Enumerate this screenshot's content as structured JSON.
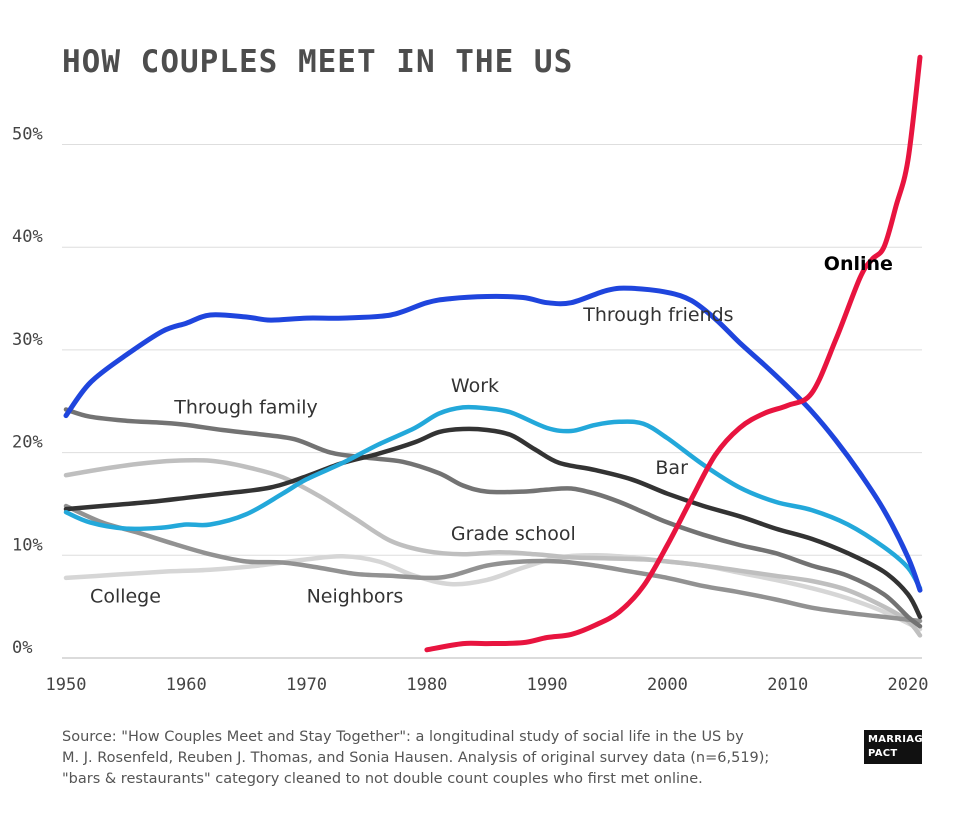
{
  "chart_data": {
    "type": "line",
    "title": "HOW COUPLES MEET IN THE US",
    "xlabel": "",
    "ylabel": "",
    "xlim": [
      1950,
      2021
    ],
    "ylim": [
      0,
      55
    ],
    "x_ticks": [
      {
        "value": 1950,
        "label": "1950"
      },
      {
        "value": 1960,
        "label": "1960"
      },
      {
        "value": 1970,
        "label": "1970"
      },
      {
        "value": 1980,
        "label": "1980"
      },
      {
        "value": 1990,
        "label": "1990"
      },
      {
        "value": 2000,
        "label": "2000"
      },
      {
        "value": 2010,
        "label": "2010"
      },
      {
        "value": 2020,
        "label": "2020"
      }
    ],
    "y_ticks": [
      {
        "value": 0,
        "label": "0%"
      },
      {
        "value": 10,
        "label": "10%"
      },
      {
        "value": 20,
        "label": "20%"
      },
      {
        "value": 30,
        "label": "30%"
      },
      {
        "value": 40,
        "label": "40%"
      },
      {
        "value": 50,
        "label": "50%"
      }
    ],
    "grid": true,
    "series": [
      {
        "name": "Through friends",
        "color": "#1f45dd",
        "key": "through-friends",
        "label_anchor": [
          1993,
          32.8
        ],
        "bold_label": false,
        "points": [
          [
            1950,
            23.6
          ],
          [
            1952,
            26.8
          ],
          [
            1955,
            29.5
          ],
          [
            1958,
            31.8
          ],
          [
            1960,
            32.6
          ],
          [
            1962,
            33.4
          ],
          [
            1965,
            33.2
          ],
          [
            1967,
            32.9
          ],
          [
            1970,
            33.1
          ],
          [
            1973,
            33.1
          ],
          [
            1977,
            33.4
          ],
          [
            1980,
            34.6
          ],
          [
            1982,
            35.0
          ],
          [
            1985,
            35.2
          ],
          [
            1988,
            35.1
          ],
          [
            1990,
            34.6
          ],
          [
            1992,
            34.6
          ],
          [
            1995,
            35.8
          ],
          [
            1997,
            36.0
          ],
          [
            2000,
            35.6
          ],
          [
            2002,
            34.8
          ],
          [
            2004,
            33.0
          ],
          [
            2006,
            30.7
          ],
          [
            2008,
            28.6
          ],
          [
            2010,
            26.4
          ],
          [
            2012,
            24.0
          ],
          [
            2014,
            21.2
          ],
          [
            2016,
            18.0
          ],
          [
            2018,
            14.4
          ],
          [
            2020,
            9.8
          ],
          [
            2021,
            6.6
          ]
        ]
      },
      {
        "name": "Online",
        "color": "#e8143f",
        "key": "online",
        "label_anchor": [
          2013,
          37.8
        ],
        "bold_label": true,
        "points": [
          [
            1980,
            0.8
          ],
          [
            1983,
            1.4
          ],
          [
            1985,
            1.4
          ],
          [
            1988,
            1.5
          ],
          [
            1990,
            2.0
          ],
          [
            1992,
            2.3
          ],
          [
            1994,
            3.2
          ],
          [
            1996,
            4.5
          ],
          [
            1998,
            7.0
          ],
          [
            2000,
            11.0
          ],
          [
            2002,
            15.5
          ],
          [
            2004,
            19.8
          ],
          [
            2006,
            22.4
          ],
          [
            2008,
            23.8
          ],
          [
            2010,
            24.6
          ],
          [
            2012,
            25.8
          ],
          [
            2014,
            31.0
          ],
          [
            2016,
            37.0
          ],
          [
            2017,
            38.8
          ],
          [
            2018,
            40.0
          ],
          [
            2019,
            44.0
          ],
          [
            2020,
            48.5
          ],
          [
            2021,
            58.5
          ]
        ]
      },
      {
        "name": "Work",
        "color": "#23a8da",
        "key": "work",
        "label_anchor": [
          1982,
          25.9
        ],
        "bold_label": false,
        "points": [
          [
            1950,
            14.2
          ],
          [
            1952,
            13.2
          ],
          [
            1955,
            12.6
          ],
          [
            1958,
            12.7
          ],
          [
            1960,
            13.0
          ],
          [
            1962,
            13.0
          ],
          [
            1965,
            14.0
          ],
          [
            1968,
            16.0
          ],
          [
            1970,
            17.4
          ],
          [
            1973,
            19.0
          ],
          [
            1976,
            20.8
          ],
          [
            1979,
            22.4
          ],
          [
            1981,
            23.8
          ],
          [
            1983,
            24.4
          ],
          [
            1985,
            24.3
          ],
          [
            1987,
            23.9
          ],
          [
            1990,
            22.4
          ],
          [
            1992,
            22.1
          ],
          [
            1994,
            22.7
          ],
          [
            1996,
            23.0
          ],
          [
            1998,
            22.8
          ],
          [
            2000,
            21.4
          ],
          [
            2003,
            18.8
          ],
          [
            2006,
            16.6
          ],
          [
            2009,
            15.2
          ],
          [
            2012,
            14.4
          ],
          [
            2015,
            13.0
          ],
          [
            2018,
            10.8
          ],
          [
            2020,
            8.8
          ],
          [
            2021,
            6.8
          ]
        ]
      },
      {
        "name": "Through family",
        "color": "#737373",
        "key": "through-family",
        "label_anchor": [
          1959,
          23.8
        ],
        "bold_label": false,
        "points": [
          [
            1950,
            24.2
          ],
          [
            1952,
            23.5
          ],
          [
            1955,
            23.1
          ],
          [
            1958,
            22.9
          ],
          [
            1960,
            22.7
          ],
          [
            1963,
            22.2
          ],
          [
            1966,
            21.8
          ],
          [
            1969,
            21.3
          ],
          [
            1972,
            20.0
          ],
          [
            1975,
            19.5
          ],
          [
            1978,
            19.1
          ],
          [
            1981,
            18.0
          ],
          [
            1983,
            16.8
          ],
          [
            1985,
            16.2
          ],
          [
            1988,
            16.2
          ],
          [
            1990,
            16.4
          ],
          [
            1992,
            16.5
          ],
          [
            1994,
            16.0
          ],
          [
            1996,
            15.2
          ],
          [
            1998,
            14.2
          ],
          [
            2000,
            13.2
          ],
          [
            2003,
            12.0
          ],
          [
            2006,
            11.0
          ],
          [
            2009,
            10.2
          ],
          [
            2012,
            9.0
          ],
          [
            2015,
            8.0
          ],
          [
            2018,
            6.2
          ],
          [
            2020,
            4.0
          ],
          [
            2021,
            3.1
          ]
        ]
      },
      {
        "name": "Bar",
        "color": "#333333",
        "key": "bar",
        "label_anchor": [
          1999,
          17.9
        ],
        "bold_label": false,
        "points": [
          [
            1950,
            14.5
          ],
          [
            1953,
            14.8
          ],
          [
            1957,
            15.2
          ],
          [
            1960,
            15.6
          ],
          [
            1963,
            16.0
          ],
          [
            1967,
            16.6
          ],
          [
            1970,
            17.7
          ],
          [
            1973,
            19.0
          ],
          [
            1976,
            19.9
          ],
          [
            1979,
            21.0
          ],
          [
            1981,
            22.0
          ],
          [
            1983,
            22.3
          ],
          [
            1985,
            22.2
          ],
          [
            1987,
            21.7
          ],
          [
            1989,
            20.3
          ],
          [
            1991,
            19.0
          ],
          [
            1994,
            18.3
          ],
          [
            1997,
            17.4
          ],
          [
            2000,
            16.0
          ],
          [
            2003,
            14.8
          ],
          [
            2006,
            13.8
          ],
          [
            2009,
            12.6
          ],
          [
            2012,
            11.6
          ],
          [
            2015,
            10.2
          ],
          [
            2018,
            8.4
          ],
          [
            2020,
            6.2
          ],
          [
            2021,
            4.0
          ]
        ]
      },
      {
        "name": "Grade school",
        "color": "#bfbfbf",
        "key": "grade-school",
        "label_anchor": [
          1982,
          11.5
        ],
        "bold_label": false,
        "points": [
          [
            1950,
            17.8
          ],
          [
            1953,
            18.4
          ],
          [
            1956,
            18.9
          ],
          [
            1959,
            19.2
          ],
          [
            1962,
            19.2
          ],
          [
            1965,
            18.6
          ],
          [
            1968,
            17.6
          ],
          [
            1971,
            15.8
          ],
          [
            1974,
            13.6
          ],
          [
            1977,
            11.4
          ],
          [
            1980,
            10.4
          ],
          [
            1983,
            10.1
          ],
          [
            1986,
            10.3
          ],
          [
            1989,
            10.1
          ],
          [
            1992,
            9.8
          ],
          [
            1995,
            9.7
          ],
          [
            1998,
            9.6
          ],
          [
            2000,
            9.4
          ],
          [
            2003,
            9.0
          ],
          [
            2006,
            8.5
          ],
          [
            2009,
            8.0
          ],
          [
            2012,
            7.5
          ],
          [
            2015,
            6.6
          ],
          [
            2018,
            5.0
          ],
          [
            2020,
            3.6
          ],
          [
            2021,
            2.2
          ]
        ]
      },
      {
        "name": "Neighbors",
        "color": "#929292",
        "key": "neighbors",
        "label_anchor": [
          1970,
          5.4
        ],
        "bold_label": false,
        "points": [
          [
            1950,
            14.8
          ],
          [
            1953,
            13.2
          ],
          [
            1956,
            12.2
          ],
          [
            1959,
            11.1
          ],
          [
            1962,
            10.1
          ],
          [
            1965,
            9.4
          ],
          [
            1968,
            9.3
          ],
          [
            1971,
            8.8
          ],
          [
            1974,
            8.2
          ],
          [
            1977,
            8.0
          ],
          [
            1980,
            7.8
          ],
          [
            1982,
            8.0
          ],
          [
            1985,
            9.0
          ],
          [
            1988,
            9.4
          ],
          [
            1991,
            9.4
          ],
          [
            1994,
            9.0
          ],
          [
            1997,
            8.4
          ],
          [
            2000,
            7.8
          ],
          [
            2003,
            7.0
          ],
          [
            2006,
            6.4
          ],
          [
            2009,
            5.7
          ],
          [
            2012,
            4.9
          ],
          [
            2015,
            4.4
          ],
          [
            2018,
            4.0
          ],
          [
            2021,
            3.6
          ]
        ]
      },
      {
        "name": "College",
        "color": "#d6d6d6",
        "key": "college",
        "label_anchor": [
          1952,
          5.4
        ],
        "bold_label": false,
        "points": [
          [
            1950,
            7.8
          ],
          [
            1954,
            8.1
          ],
          [
            1958,
            8.4
          ],
          [
            1962,
            8.6
          ],
          [
            1966,
            9.0
          ],
          [
            1970,
            9.6
          ],
          [
            1973,
            9.9
          ],
          [
            1976,
            9.4
          ],
          [
            1979,
            8.0
          ],
          [
            1982,
            7.2
          ],
          [
            1985,
            7.6
          ],
          [
            1988,
            8.8
          ],
          [
            1991,
            9.8
          ],
          [
            1994,
            10.0
          ],
          [
            1997,
            9.8
          ],
          [
            2000,
            9.4
          ],
          [
            2003,
            9.0
          ],
          [
            2006,
            8.3
          ],
          [
            2009,
            7.6
          ],
          [
            2012,
            6.8
          ],
          [
            2015,
            5.8
          ],
          [
            2018,
            4.5
          ],
          [
            2021,
            2.8
          ]
        ]
      }
    ],
    "source_lines": [
      "Source: \"How Couples Meet and Stay Together\": a longitudinal study of social life in the US by",
      "M. J. Rosenfeld, Reuben J. Thomas, and Sonia Hausen. Analysis of original survey data (n=6,519);",
      "\"bars & restaurants\" category cleaned to not double count couples who first met online."
    ],
    "logo_lines": [
      "MARRIAGE",
      "PACT"
    ]
  }
}
